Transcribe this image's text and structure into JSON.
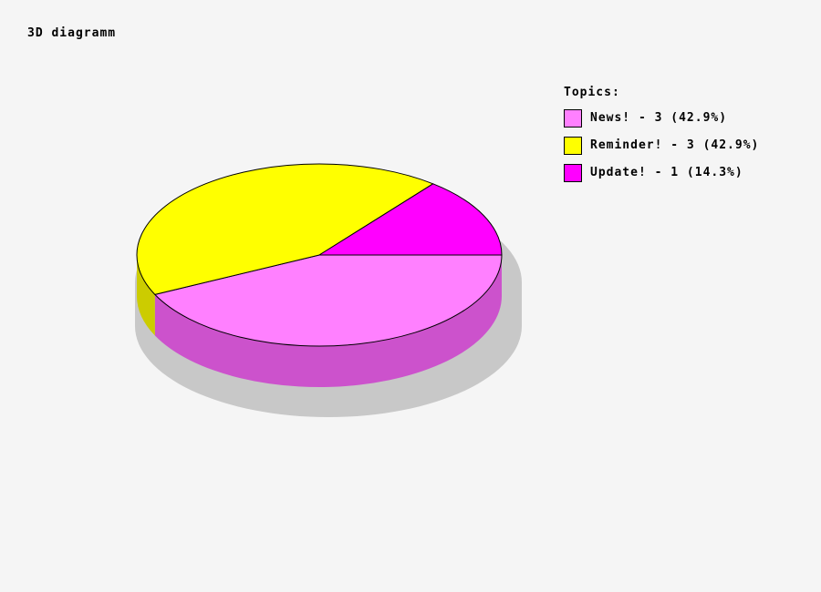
{
  "title": "3D diagramm",
  "legend": {
    "title": "Topics:",
    "items": [
      {
        "label": "News! - 3 (42.9%)",
        "color": "#FF80FF"
      },
      {
        "label": "Reminder! - 3 (42.9%)",
        "color": "#FFFF00"
      },
      {
        "label": "Update! - 1 (14.3%)",
        "color": "#FF00FF"
      }
    ]
  },
  "chart_data": {
    "type": "pie",
    "style": "3d-with-depth-and-shadow",
    "title": "3D diagramm",
    "legend_title": "Topics:",
    "legend_position": "right",
    "categories": [
      "News!",
      "Reminder!",
      "Update!"
    ],
    "values": [
      3,
      3,
      1
    ],
    "percentages": [
      42.9,
      42.9,
      14.3
    ],
    "colors": [
      "#FF80FF",
      "#FFFF00",
      "#FF00FF"
    ],
    "side_colors": [
      "#CC52CC",
      "#CCCC00",
      "#CC00CC"
    ],
    "outline_color": "#000000",
    "shadow_color": "#C8C8C8",
    "background_color": "#F5F5F5",
    "start_angle_deg": 0,
    "direction": "clockwise-from-east"
  }
}
